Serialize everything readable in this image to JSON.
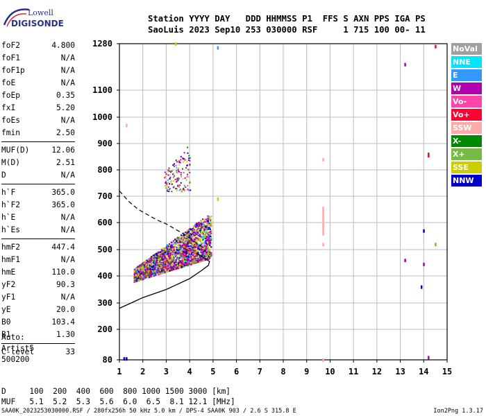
{
  "logo": {
    "line1": "Lowell",
    "line2": "DIGISONDE"
  },
  "header": {
    "line1": "Station YYYY DAY   DDD HHMMSS P1  FFS S AXN PPS IGA PS",
    "line2": "SaoLuis 2023 Sep10 253 030000 RSF     1 715 100 00- 11"
  },
  "params": {
    "g1": [
      {
        "label": "foF2",
        "value": "4.800"
      },
      {
        "label": "foF1",
        "value": "N/A"
      },
      {
        "label": "foF1p",
        "value": "N/A"
      },
      {
        "label": "foE",
        "value": "N/A"
      },
      {
        "label": "foEp",
        "value": "0.35"
      },
      {
        "label": "fxI",
        "value": "5.20"
      },
      {
        "label": "foEs",
        "value": "N/A"
      },
      {
        "label": "fmin",
        "value": "2.50"
      }
    ],
    "g2": [
      {
        "label": "MUF(D)",
        "value": "12.06"
      },
      {
        "label": "M(D)",
        "value": "2.51"
      },
      {
        "label": "D",
        "value": "N/A"
      }
    ],
    "g3": [
      {
        "label": "h`F",
        "value": "365.0"
      },
      {
        "label": "h`F2",
        "value": "365.0"
      },
      {
        "label": "h`E",
        "value": "N/A"
      },
      {
        "label": "h`Es",
        "value": "N/A"
      }
    ],
    "g4": [
      {
        "label": "hmF2",
        "value": "447.4"
      },
      {
        "label": "hmF1",
        "value": "N/A"
      },
      {
        "label": "hmE",
        "value": "110.0"
      },
      {
        "label": "yF2",
        "value": "90.3"
      },
      {
        "label": "yF1",
        "value": "N/A"
      },
      {
        "label": "yE",
        "value": "20.0"
      },
      {
        "label": "B0",
        "value": "103.4"
      },
      {
        "label": "B1",
        "value": "1.30"
      }
    ],
    "g5": [
      {
        "label": "C-level",
        "value": "33"
      }
    ]
  },
  "autoscale": {
    "line1": "Auto:",
    "line2": "Artist5",
    "line3": "500200"
  },
  "legend": [
    {
      "label": "NoVal",
      "color": "#a0a0a0"
    },
    {
      "label": "NNE",
      "color": "#00e5ff"
    },
    {
      "label": "E",
      "color": "#3399ff"
    },
    {
      "label": "W",
      "color": "#b000b0"
    },
    {
      "label": "Vo-",
      "color": "#ff44aa"
    },
    {
      "label": "Vo+",
      "color": "#ff0033"
    },
    {
      "label": "SSW",
      "color": "#ffaaaa"
    },
    {
      "label": "X-",
      "color": "#008800"
    },
    {
      "label": "X+",
      "color": "#77bb44"
    },
    {
      "label": "SSE",
      "color": "#cccc00"
    },
    {
      "label": "NNW",
      "color": "#0000cc"
    }
  ],
  "muf_table": {
    "line1": "D     100  200  400  600  800 1000 1500 3000 [km]",
    "line2": "MUF   5.1  5.2  5.3  5.6  6.0  6.5  8.1 12.1 [MHz]"
  },
  "footer": {
    "left": "SAA0K_2023253030000.RSF / 280fx256h 50 kHz 5.0 km / DPS-4 SAA0K 903 / 2.6 S 315.8 E",
    "right": "Ion2Png 1.3.17"
  },
  "chart_data": {
    "type": "scatter",
    "title": "",
    "xlabel": "",
    "ylabel": "",
    "xlim": [
      1,
      15
    ],
    "ylim": [
      80,
      1280
    ],
    "x_ticks": [
      "1",
      "2",
      "3",
      "4",
      "5",
      "6",
      "7",
      "8",
      "9",
      "10",
      "11",
      "12",
      "13",
      "14",
      "15"
    ],
    "y_ticks": [
      "80",
      "200",
      "300",
      "400",
      "500",
      "600",
      "700",
      "800",
      "900",
      "1000",
      "1100",
      "1280"
    ],
    "y_tick_values": [
      80,
      200,
      300,
      400,
      500,
      600,
      700,
      800,
      900,
      1000,
      1100,
      1280
    ],
    "y_scale": "nonlinear (virtual height, km)",
    "grid": true,
    "echo_clusters": [
      {
        "desc": "F2 trace main",
        "x_range": [
          1.6,
          4.9
        ],
        "h_lower": [
          1.6,
          380,
          4.9,
          470
        ],
        "h_upper": [
          1.6,
          430,
          4.9,
          640
        ]
      },
      {
        "desc": "second hop",
        "x_range": [
          2.9,
          4.0
        ],
        "h_range": [
          720,
          900
        ]
      }
    ],
    "isolated_points": [
      {
        "x": 9.7,
        "h": 840,
        "color": "#ffaaaa"
      },
      {
        "x": 9.7,
        "h": 620,
        "color": "#ffaaaa"
      },
      {
        "x": 9.7,
        "h": 590,
        "color": "#ffaaaa"
      },
      {
        "x": 9.7,
        "h": 560,
        "color": "#ffaaaa"
      },
      {
        "x": 9.7,
        "h": 520,
        "color": "#ffaaaa"
      },
      {
        "x": 14.2,
        "h": 860,
        "color": "#008800"
      },
      {
        "x": 14.2,
        "h": 855,
        "color": "#ff0033"
      },
      {
        "x": 14.5,
        "h": 520,
        "color": "#77bb44"
      },
      {
        "x": 14.0,
        "h": 570,
        "color": "#0000cc"
      },
      {
        "x": 13.2,
        "h": 460,
        "color": "#b000b0"
      },
      {
        "x": 14.0,
        "h": 445,
        "color": "#b000b0"
      },
      {
        "x": 13.9,
        "h": 360,
        "color": "#0000cc"
      },
      {
        "x": 14.2,
        "h": 90,
        "color": "#b000b0"
      },
      {
        "x": 13.2,
        "h": 1200,
        "color": "#b000b0"
      },
      {
        "x": 14.5,
        "h": 1270,
        "color": "#ff0033"
      },
      {
        "x": 5.2,
        "h": 1265,
        "color": "#3399ff"
      },
      {
        "x": 3.4,
        "h": 1280,
        "color": "#cccc00"
      },
      {
        "x": 1.3,
        "h": 970,
        "color": "#ffaaaa"
      },
      {
        "x": 1.2,
        "h": 85,
        "color": "#0000cc"
      },
      {
        "x": 1.3,
        "h": 85,
        "color": "#0000cc"
      },
      {
        "x": 9.7,
        "h": 80,
        "color": "#ffaaaa"
      },
      {
        "x": 5.2,
        "h": 690,
        "color": "#cccc00"
      }
    ],
    "profile_solid": [
      [
        1.0,
        280
      ],
      [
        1.5,
        300
      ],
      [
        2.0,
        320
      ],
      [
        2.5,
        335
      ],
      [
        3.0,
        350
      ],
      [
        3.5,
        370
      ],
      [
        4.0,
        390
      ],
      [
        4.5,
        420
      ],
      [
        4.8,
        440
      ],
      [
        4.85,
        455
      ],
      [
        4.6,
        470
      ],
      [
        4.3,
        485
      ]
    ],
    "profile_dashed": [
      [
        1.0,
        720
      ],
      [
        1.4,
        680
      ],
      [
        1.8,
        650
      ],
      [
        2.2,
        630
      ],
      [
        2.6,
        610
      ],
      [
        3.0,
        595
      ],
      [
        3.4,
        575
      ],
      [
        3.8,
        555
      ],
      [
        4.2,
        530
      ],
      [
        4.6,
        505
      ],
      [
        4.85,
        470
      ]
    ]
  }
}
